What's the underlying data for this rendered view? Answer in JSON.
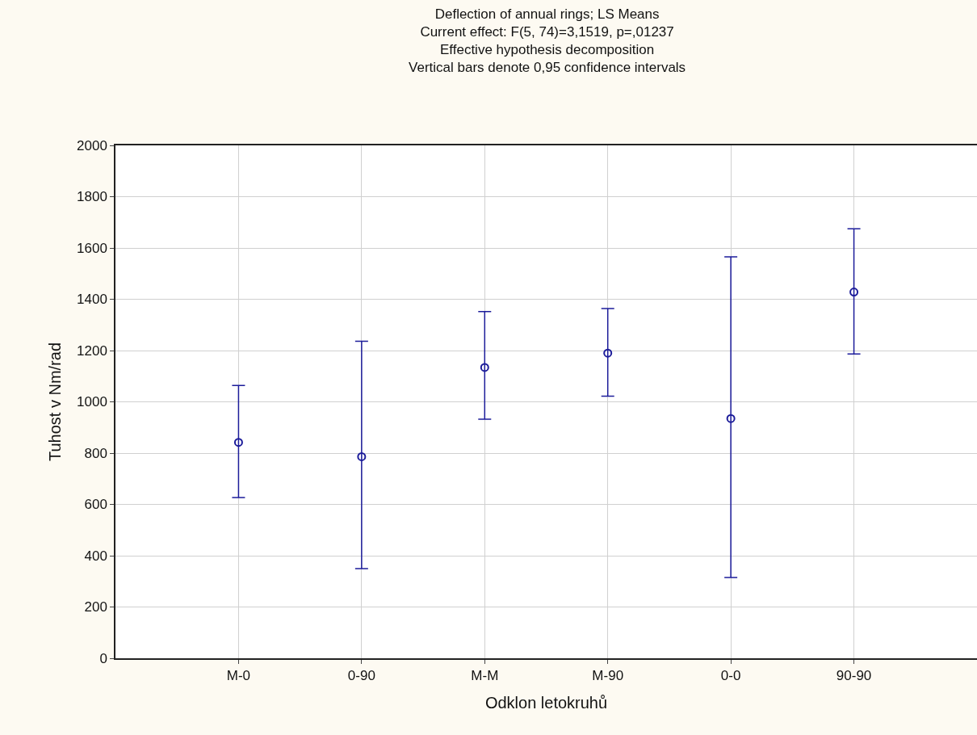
{
  "chart_data": {
    "type": "scatter",
    "title": "Deflection of annual rings; LS Means",
    "subtitle": "Current effect: F(5, 74)=3,1519, p=,01237\nEffective hypothesis decomposition\nVertical bars denote 0,95 confidence intervals",
    "xlabel": "Odklon letokruhů",
    "ylabel": "Tuhost v Nm/rad",
    "categories": [
      "M-0",
      "0-90",
      "M-M",
      "M-90",
      "0-0",
      "90-90"
    ],
    "series": [
      {
        "color": "#1c1c9a",
        "values": [
          842,
          786,
          1134,
          1190,
          935,
          1428
        ],
        "errors": [
          [
            627,
            1064
          ],
          [
            350,
            1236
          ],
          [
            932,
            1352
          ],
          [
            1022,
            1364
          ],
          [
            315,
            1565
          ],
          [
            1187,
            1675
          ]
        ]
      }
    ],
    "ylim": [
      0,
      2000
    ],
    "yticks": [
      0,
      200,
      400,
      600,
      800,
      1000,
      1200,
      1400,
      1600,
      1800,
      2000
    ],
    "grid": true,
    "marker": "circle"
  }
}
